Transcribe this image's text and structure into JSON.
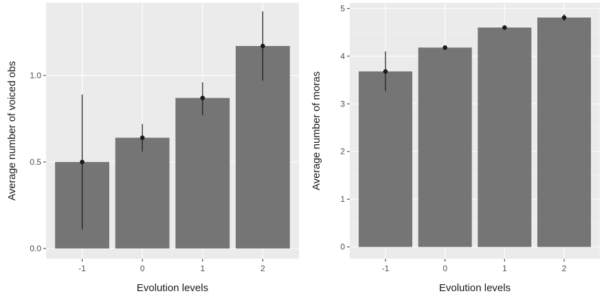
{
  "chart_data": [
    {
      "type": "bar",
      "xlabel": "Evolution levels",
      "ylabel": "Average number of voiced obs",
      "categories": [
        "-1",
        "0",
        "1",
        "2"
      ],
      "values": [
        0.5,
        0.64,
        0.87,
        1.17
      ],
      "error_low": [
        0.11,
        0.56,
        0.77,
        0.97
      ],
      "error_high": [
        0.89,
        0.72,
        0.96,
        1.37
      ],
      "yticks": [
        0.0,
        0.5,
        1.0
      ],
      "ytick_labels": [
        "0.0",
        "0.5",
        "1.0"
      ],
      "ylim": [
        -0.06,
        1.42
      ],
      "grid": true,
      "colors": {
        "bar": "#757575",
        "panel": "#ebebeb",
        "point": "#1a1a1a"
      }
    },
    {
      "type": "bar",
      "xlabel": "Evolution levels",
      "ylabel": "Average number of moras",
      "categories": [
        "-1",
        "0",
        "1",
        "2"
      ],
      "values": [
        3.68,
        4.18,
        4.6,
        4.81
      ],
      "error_low": [
        3.27,
        4.13,
        4.55,
        4.74
      ],
      "error_high": [
        4.1,
        4.23,
        4.65,
        4.88
      ],
      "yticks": [
        0,
        1,
        2,
        3,
        4,
        5
      ],
      "ytick_labels": [
        "0",
        "1",
        "2",
        "3",
        "4",
        "5"
      ],
      "ylim": [
        -0.25,
        5.12
      ],
      "grid": true,
      "colors": {
        "bar": "#757575",
        "panel": "#ebebeb",
        "point": "#1a1a1a"
      }
    }
  ]
}
